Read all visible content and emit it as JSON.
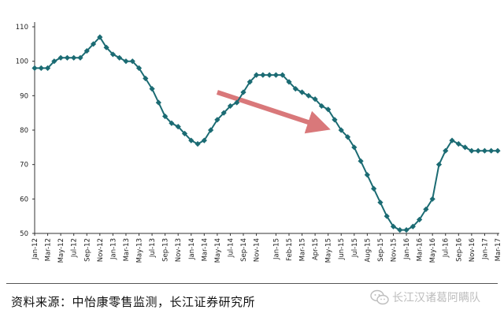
{
  "chart_data": {
    "type": "line",
    "title": "",
    "xlabel": "",
    "ylabel": "",
    "ylim": [
      50,
      110
    ],
    "yticks": [
      50,
      60,
      70,
      80,
      90,
      100,
      110
    ],
    "grid": false,
    "legend": "none",
    "x_tick_labels": [
      "Jan-12",
      "Mar-12",
      "May-12",
      "Jul-12",
      "Sep-12",
      "Nov-12",
      "Jan-13",
      "Mar-13",
      "May-13",
      "Jul-13",
      "Sep-13",
      "Nov-13",
      "Jan-14",
      "Mar-14",
      "May-14",
      "Jul-14",
      "Sep-14",
      "Nov-14",
      "Jan-15",
      "Feb-15",
      "Mar-15",
      "Apr-15",
      "May-15",
      "Jun-15",
      "Jul-15",
      "Aug-15",
      "Sep-15",
      "Nov-15",
      "Jan-16",
      "Mar-16",
      "May-16",
      "Jul-16",
      "Sep-16",
      "Nov-16",
      "Jan-17",
      "Mar-17"
    ],
    "series": [
      {
        "color": "#1b6b73",
        "marker": "diamond",
        "values": [
          98,
          98,
          98,
          100,
          101,
          101,
          101,
          101,
          103,
          105,
          107,
          104,
          102,
          101,
          100,
          100,
          98,
          95,
          92,
          88,
          84,
          82,
          81,
          79,
          77,
          76,
          77,
          80,
          83,
          85,
          87,
          88,
          91,
          94,
          96,
          96,
          96,
          96,
          96,
          94,
          92,
          91,
          90,
          89,
          87,
          86,
          83,
          80,
          78,
          75,
          71,
          67,
          63,
          59,
          55,
          52,
          51,
          51,
          52,
          54,
          57,
          60,
          70,
          74,
          77,
          76,
          75,
          74,
          74,
          74,
          74,
          74
        ]
      }
    ],
    "annotations": [
      {
        "type": "arrow",
        "color": "#d9787a",
        "from": {
          "x": 28,
          "y": 91
        },
        "to": {
          "x": 44,
          "y": 81
        }
      }
    ]
  },
  "footer": {
    "source_text": "资料来源：中怡康零售监测，长江证券研究所",
    "watermark_text": "长江汉诸葛阿瞒队",
    "watermark_icon": "wechat-icon"
  }
}
